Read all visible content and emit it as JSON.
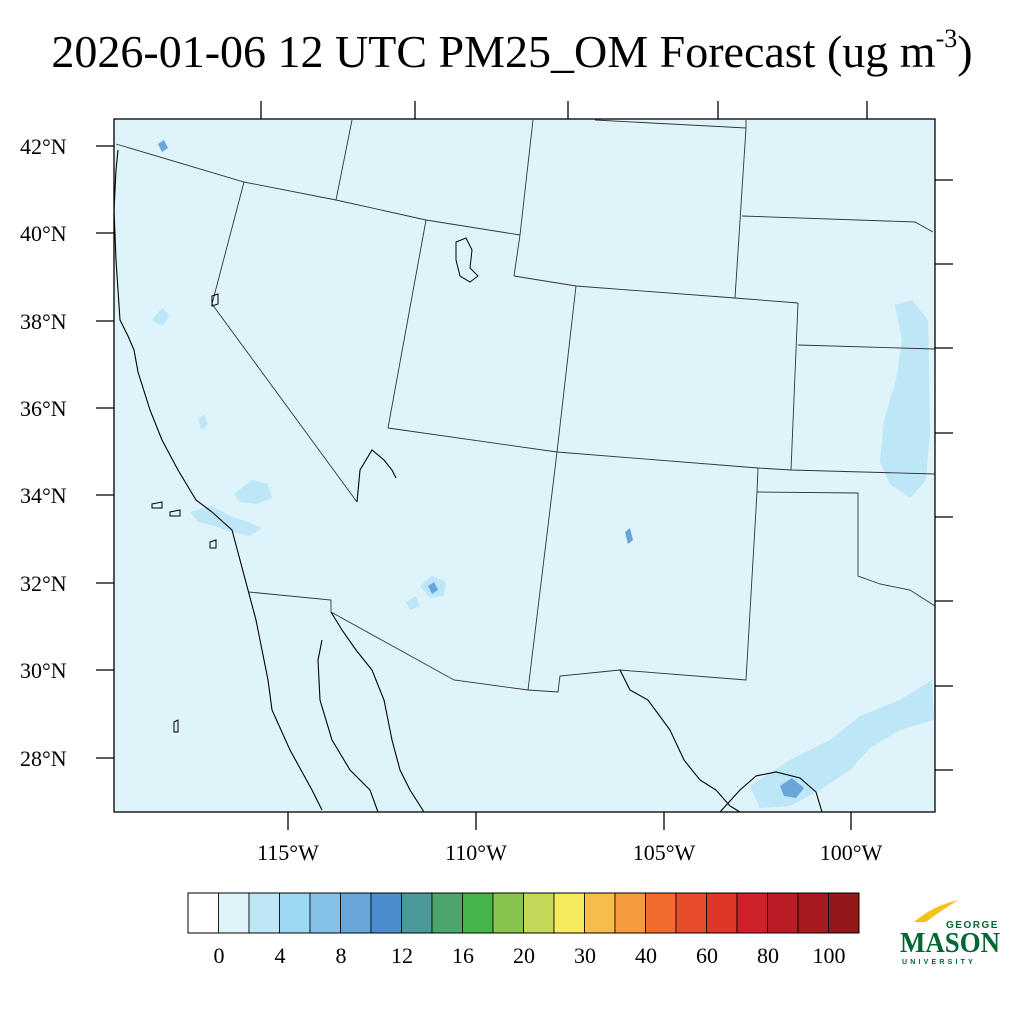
{
  "title": {
    "main": "2026-01-06 12 UTC PM25_OM Forecast (ug m",
    "exponent": "-3",
    "close": ")"
  },
  "map": {
    "lat_labels": [
      "42°N",
      "40°N",
      "38°N",
      "36°N",
      "34°N",
      "32°N",
      "30°N",
      "28°N"
    ],
    "lon_labels": [
      "115°W",
      "110°W",
      "105°W",
      "100°W"
    ],
    "background_color": "#dff3fb",
    "border_color": "#000000"
  },
  "colorbar": {
    "colors": [
      "#ffffff",
      "#dff3fb",
      "#bde6f7",
      "#9dd8f5",
      "#84c2e9",
      "#68a6da",
      "#4a8dcc",
      "#4b9a9a",
      "#4aa66c",
      "#46b44a",
      "#86c44d",
      "#c4d85a",
      "#f6e95d",
      "#f6bc4c",
      "#f59a3e",
      "#f26b2d",
      "#e84c2b",
      "#de3627",
      "#d0202a",
      "#bb1b23",
      "#a8191d",
      "#941719"
    ],
    "tick_labels": [
      "0",
      "4",
      "8",
      "12",
      "16",
      "20",
      "30",
      "40",
      "60",
      "80",
      "100"
    ]
  },
  "logo": {
    "top": "GEORGE",
    "main": "MASON",
    "bottom": "UNIVERSITY",
    "green": "#006633",
    "gold": "#f2c219"
  }
}
